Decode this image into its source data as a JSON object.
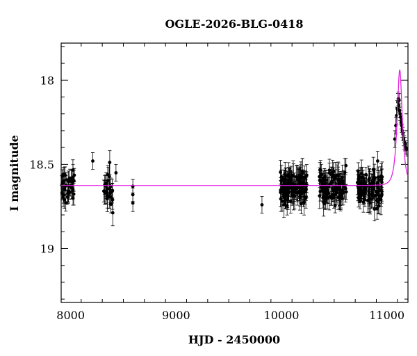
{
  "chart_data": {
    "type": "scatter",
    "title": "OGLE-2026-BLG-0418",
    "xlabel": "HJD - 2450000",
    "ylabel": "I magnitude",
    "xlim": [
      7910,
      11200
    ],
    "ylim": [
      19.32,
      17.78
    ],
    "y_inverted": true,
    "xticks": [
      8000,
      9000,
      10000,
      11000
    ],
    "yticks": [
      18,
      18.5,
      19
    ],
    "xtick_labels": [
      "8000",
      "9000",
      "10000",
      "11000"
    ],
    "ytick_labels": [
      "18",
      "18.5",
      "19"
    ],
    "grid": false,
    "colors": {
      "data": "#000000",
      "model": "#e31ee3",
      "frame": "#000000"
    },
    "clusters": [
      {
        "x_from": 7915,
        "x_to": 8050,
        "n": 38,
        "y_mean": 18.64,
        "y_sd": 0.055,
        "err_min": 0.04,
        "err_max": 0.075
      },
      {
        "x_from": 8310,
        "x_to": 8400,
        "n": 26,
        "y_mean": 18.66,
        "y_sd": 0.06,
        "err_min": 0.04,
        "err_max": 0.08
      },
      {
        "x_from": 9990,
        "x_to": 10240,
        "n": 120,
        "y_mean": 18.64,
        "y_sd": 0.05,
        "err_min": 0.04,
        "err_max": 0.09
      },
      {
        "x_from": 10360,
        "x_to": 10620,
        "n": 100,
        "y_mean": 18.64,
        "y_sd": 0.05,
        "err_min": 0.04,
        "err_max": 0.085
      },
      {
        "x_from": 10720,
        "x_to": 10960,
        "n": 100,
        "y_mean": 18.64,
        "y_sd": 0.05,
        "err_min": 0.04,
        "err_max": 0.09
      }
    ],
    "isolated_points": [
      {
        "x": 8210,
        "y": 18.48,
        "err": 0.05
      },
      {
        "x": 8430,
        "y": 18.55,
        "err": 0.05
      },
      {
        "x": 8590,
        "y": 18.63,
        "err": 0.04
      },
      {
        "x": 8590,
        "y": 18.68,
        "err": 0.04
      },
      {
        "x": 8590,
        "y": 18.73,
        "err": 0.05
      },
      {
        "x": 9815,
        "y": 18.74,
        "err": 0.05
      }
    ],
    "rise_points": [
      {
        "x": 11075,
        "y": 18.35,
        "err": 0.05
      },
      {
        "x": 11085,
        "y": 18.27,
        "err": 0.05
      },
      {
        "x": 11092,
        "y": 18.21,
        "err": 0.05
      },
      {
        "x": 11098,
        "y": 18.17,
        "err": 0.05
      },
      {
        "x": 11104,
        "y": 18.13,
        "err": 0.05
      },
      {
        "x": 11108,
        "y": 18.11,
        "err": 0.04
      },
      {
        "x": 11112,
        "y": 18.15,
        "err": 0.04
      },
      {
        "x": 11116,
        "y": 18.12,
        "err": 0.04
      },
      {
        "x": 11120,
        "y": 18.18,
        "err": 0.04
      },
      {
        "x": 11125,
        "y": 18.2,
        "err": 0.04
      },
      {
        "x": 11130,
        "y": 18.22,
        "err": 0.04
      },
      {
        "x": 11135,
        "y": 18.25,
        "err": 0.04
      },
      {
        "x": 11140,
        "y": 18.27,
        "err": 0.04
      },
      {
        "x": 11146,
        "y": 18.3,
        "err": 0.04
      },
      {
        "x": 11152,
        "y": 18.32,
        "err": 0.04
      },
      {
        "x": 11158,
        "y": 18.35,
        "err": 0.04
      },
      {
        "x": 11165,
        "y": 18.37,
        "err": 0.04
      },
      {
        "x": 11172,
        "y": 18.38,
        "err": 0.04
      },
      {
        "x": 11180,
        "y": 18.4,
        "err": 0.04
      },
      {
        "x": 11188,
        "y": 18.41,
        "err": 0.04
      }
    ],
    "model": {
      "type": "point-lens",
      "baseline_mag": 18.625,
      "t0": 11122,
      "tE": 38,
      "u0": 0.6,
      "x_from": 7910,
      "x_to": 11200
    }
  }
}
